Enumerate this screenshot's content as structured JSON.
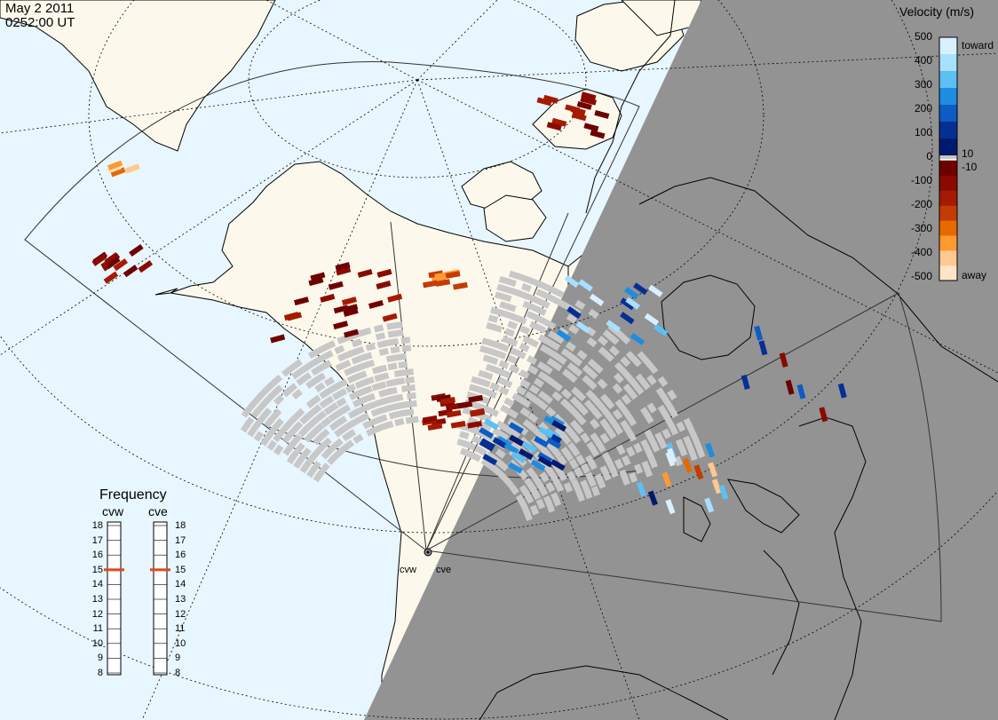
{
  "header": {
    "date": "May  2 2011",
    "time": "0252:00 UT"
  },
  "colorbar": {
    "title": "Velocity (m/s)",
    "toward_label": "toward",
    "away_label": "away",
    "positive_ticks": [
      "500",
      "400",
      "300",
      "200",
      "100",
      "10"
    ],
    "zero_tick": "0",
    "negative_ticks": [
      "-10",
      "-100",
      "-200",
      "-300",
      "-400",
      "-500"
    ],
    "colors_toward": [
      "#d8f0ff",
      "#a8e0ff",
      "#5cc0f4",
      "#1e8ce0",
      "#0c5cc4",
      "#062f94",
      "#001a6e"
    ],
    "colors_away": [
      "#6e0000",
      "#8a0a00",
      "#a51a00",
      "#c43c00",
      "#e66a00",
      "#ff9a30",
      "#ffc890",
      "#ffe4c8"
    ],
    "gray_color": "#c8c8c8"
  },
  "frequency": {
    "title": "Frequency",
    "radars": [
      {
        "name": "cvw",
        "value": 15
      },
      {
        "name": "cve",
        "value": 15
      }
    ],
    "scale": [
      "18",
      "17",
      "16",
      "15",
      "14",
      "13",
      "12",
      "11",
      "10",
      "9",
      "8"
    ],
    "marker_color": "#e04a1a"
  },
  "sites": {
    "west": "cvw",
    "east": "cve"
  },
  "map": {
    "ocean_color": "#e8f6ff",
    "land_color": "#fcf9ec",
    "night_color": "#939393",
    "coast_color": "#000000"
  }
}
